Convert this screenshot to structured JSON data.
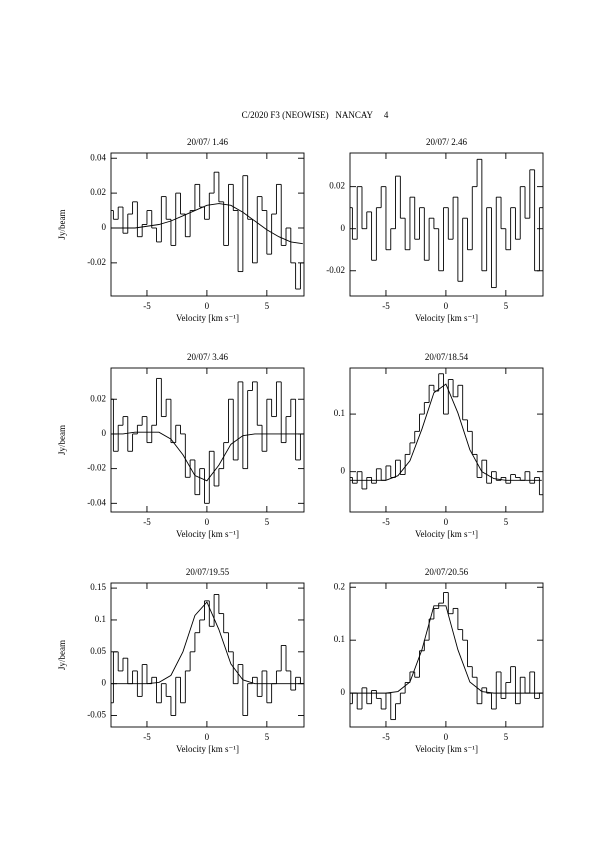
{
  "title": "C/2020 F3 (NEOWISE)   NANCAY     4",
  "chart_data": [
    {
      "type": "line",
      "title": "20/07/ 1.46",
      "x_label": "Velocity [km s⁻¹]",
      "y_label": "Jy/beam",
      "xlim": [
        -8,
        8.1
      ],
      "ylim": [
        -0.039,
        0.043
      ],
      "xticks": [
        -5,
        0,
        5
      ],
      "yticks": [
        -0.02,
        0,
        0.02,
        0.04
      ],
      "series": [
        {
          "style": "steps-mid",
          "color": "#000000",
          "x": [
            -8,
            -7.6,
            -7.2,
            -6.8,
            -6.4,
            -6,
            -5.6,
            -5.2,
            -4.8,
            -4.4,
            -4,
            -3.6,
            -3.2,
            -2.8,
            -2.4,
            -2,
            -1.6,
            -1.2,
            -0.8,
            -0.4,
            0,
            0.4,
            0.8,
            1.2,
            1.6,
            2,
            2.4,
            2.8,
            3.2,
            3.6,
            4,
            4.4,
            4.8,
            5.2,
            5.6,
            6,
            6.4,
            6.8,
            7.2,
            7.6,
            8
          ],
          "values": [
            0.01,
            0.005,
            0.012,
            -0.003,
            0.008,
            0.015,
            -0.005,
            0.002,
            0.01,
            0.0,
            -0.008,
            0.018,
            0.005,
            -0.01,
            0.02,
            0.008,
            -0.005,
            0.01,
            0.025,
            0.012,
            0.005,
            0.02,
            0.032,
            0.015,
            -0.01,
            0.025,
            0.01,
            -0.025,
            0.03,
            0.005,
            -0.02,
            0.018,
            0.01,
            -0.015,
            0.008,
            0.025,
            -0.01,
            0.0,
            -0.02,
            -0.035,
            -0.02
          ]
        },
        {
          "style": "line",
          "color": "#000000",
          "x": [
            -8,
            -7,
            -6,
            -5,
            -4,
            -3,
            -2,
            -1,
            0,
            1,
            2,
            3,
            4,
            5,
            6,
            7,
            8
          ],
          "values": [
            0,
            0,
            0,
            0.001,
            0.002,
            0.004,
            0.007,
            0.01,
            0.013,
            0.014,
            0.013,
            0.009,
            0.004,
            -0.001,
            -0.005,
            -0.008,
            -0.009
          ]
        }
      ]
    },
    {
      "type": "line",
      "title": "20/07/ 2.46",
      "x_label": "Velocity [km s⁻¹]",
      "xlim": [
        -8,
        8.1
      ],
      "ylim": [
        -0.032,
        0.036
      ],
      "xticks": [
        -5,
        0,
        5
      ],
      "yticks": [
        -0.02,
        0,
        0.02
      ],
      "series": [
        {
          "style": "steps-mid",
          "color": "#000000",
          "x": [
            -8,
            -7.6,
            -7.2,
            -6.8,
            -6.4,
            -6,
            -5.6,
            -5.2,
            -4.8,
            -4.4,
            -4,
            -3.6,
            -3.2,
            -2.8,
            -2.4,
            -2,
            -1.6,
            -1.2,
            -0.8,
            -0.4,
            0,
            0.4,
            0.8,
            1.2,
            1.6,
            2,
            2.4,
            2.8,
            3.2,
            3.6,
            4,
            4.4,
            4.8,
            5.2,
            5.6,
            6,
            6.4,
            6.8,
            7.2,
            7.6,
            8
          ],
          "values": [
            0.01,
            -0.005,
            0.02,
            0.0,
            0.008,
            -0.015,
            0.01,
            0.02,
            -0.01,
            0.0,
            0.025,
            0.005,
            -0.01,
            0.015,
            -0.005,
            0.01,
            -0.015,
            0.005,
            0.0,
            -0.02,
            0.01,
            -0.005,
            0.015,
            -0.025,
            0.005,
            -0.01,
            0.02,
            0.033,
            -0.02,
            0.01,
            -0.028,
            0.015,
            0.0,
            -0.01,
            0.01,
            -0.005,
            0.02,
            0.005,
            0.028,
            -0.02,
            0.01
          ]
        }
      ]
    },
    {
      "type": "line",
      "title": "20/07/ 3.46",
      "x_label": "Velocity [km s⁻¹]",
      "y_label": "Jy/beam",
      "xlim": [
        -8,
        8.1
      ],
      "ylim": [
        -0.045,
        0.038
      ],
      "xticks": [
        -5,
        0,
        5
      ],
      "yticks": [
        -0.04,
        -0.02,
        0,
        0.02
      ],
      "series": [
        {
          "style": "steps-mid",
          "color": "#000000",
          "x": [
            -8,
            -7.6,
            -7.2,
            -6.8,
            -6.4,
            -6,
            -5.6,
            -5.2,
            -4.8,
            -4.4,
            -4,
            -3.6,
            -3.2,
            -2.8,
            -2.4,
            -2,
            -1.6,
            -1.2,
            -0.8,
            -0.4,
            0,
            0.4,
            0.8,
            1.2,
            1.6,
            2,
            2.4,
            2.8,
            3.2,
            3.6,
            4,
            4.4,
            4.8,
            5.2,
            5.6,
            6,
            6.4,
            6.8,
            7.2,
            7.6,
            8
          ],
          "values": [
            0.02,
            -0.01,
            0.005,
            0.01,
            -0.01,
            0.0,
            0.005,
            0.01,
            -0.005,
            0.005,
            0.032,
            0.01,
            0.02,
            -0.005,
            0.005,
            0.0,
            -0.025,
            -0.015,
            -0.035,
            -0.02,
            -0.04,
            -0.01,
            -0.03,
            -0.02,
            -0.005,
            0.02,
            -0.015,
            0.03,
            -0.02,
            0.025,
            0.03,
            0.005,
            -0.01,
            0.02,
            0.01,
            0.03,
            -0.005,
            0.01,
            0.02,
            -0.015,
            0.0
          ]
        },
        {
          "style": "line",
          "color": "#000000",
          "x": [
            -8,
            -7,
            -6,
            -5,
            -4,
            -3,
            -2,
            -1,
            0,
            1,
            2,
            3,
            4,
            5,
            6,
            7,
            8
          ],
          "values": [
            0,
            0,
            0.001,
            0.001,
            0.001,
            -0.003,
            -0.012,
            -0.024,
            -0.027,
            -0.018,
            -0.006,
            -0.001,
            0,
            0,
            0,
            0,
            0
          ]
        }
      ]
    },
    {
      "type": "line",
      "title": "20/07/18.54",
      "x_label": "Velocity [km s⁻¹]",
      "xlim": [
        -8,
        8.1
      ],
      "ylim": [
        -0.07,
        0.18
      ],
      "xticks": [
        -5,
        0,
        5
      ],
      "yticks": [
        0,
        0.1
      ],
      "series": [
        {
          "style": "steps-mid",
          "color": "#000000",
          "x": [
            -8,
            -7.6,
            -7.2,
            -6.8,
            -6.4,
            -6,
            -5.6,
            -5.2,
            -4.8,
            -4.4,
            -4,
            -3.6,
            -3.2,
            -2.8,
            -2.4,
            -2,
            -1.6,
            -1.2,
            -0.8,
            -0.4,
            0,
            0.4,
            0.8,
            1.2,
            1.6,
            2,
            2.4,
            2.8,
            3.2,
            3.6,
            4,
            4.4,
            4.8,
            5.2,
            5.6,
            6,
            6.4,
            6.8,
            7.2,
            7.6,
            8
          ],
          "values": [
            -0.01,
            -0.02,
            0.0,
            -0.03,
            -0.01,
            -0.02,
            0.005,
            -0.015,
            0.01,
            -0.01,
            0.02,
            -0.005,
            0.03,
            0.05,
            0.07,
            0.1,
            0.12,
            0.15,
            0.14,
            0.17,
            0.1,
            0.16,
            0.13,
            0.15,
            0.09,
            0.07,
            0.03,
            -0.01,
            0.02,
            -0.02,
            0.0,
            -0.015,
            -0.01,
            -0.02,
            -0.005,
            -0.01,
            -0.015,
            0.0,
            -0.02,
            -0.01,
            -0.04
          ]
        },
        {
          "style": "line",
          "color": "#000000",
          "x": [
            -8,
            -7,
            -6,
            -5,
            -4,
            -3,
            -2,
            -1,
            0,
            1,
            2,
            3,
            4,
            5,
            6,
            7,
            8
          ],
          "values": [
            -0.015,
            -0.015,
            -0.015,
            -0.015,
            -0.007,
            0.019,
            0.074,
            0.137,
            0.152,
            0.102,
            0.038,
            0.0,
            -0.012,
            -0.015,
            -0.015,
            -0.015,
            -0.015
          ]
        }
      ]
    },
    {
      "type": "line",
      "title": "20/07/19.55",
      "x_label": "Velocity [km s⁻¹]",
      "y_label": "Jy/beam",
      "xlim": [
        -8,
        8.1
      ],
      "ylim": [
        -0.068,
        0.158
      ],
      "xticks": [
        -5,
        0,
        5
      ],
      "yticks": [
        -0.05,
        0,
        0.05,
        0.1,
        0.15
      ],
      "series": [
        {
          "style": "steps-mid",
          "color": "#000000",
          "x": [
            -8,
            -7.6,
            -7.2,
            -6.8,
            -6.4,
            -6,
            -5.6,
            -5.2,
            -4.8,
            -4.4,
            -4,
            -3.6,
            -3.2,
            -2.8,
            -2.4,
            -2,
            -1.6,
            -1.2,
            -0.8,
            -0.4,
            0,
            0.4,
            0.8,
            1.2,
            1.6,
            2,
            2.4,
            2.8,
            3.2,
            3.6,
            4,
            4.4,
            4.8,
            5.2,
            5.6,
            6,
            6.4,
            6.8,
            7.2,
            7.6,
            8
          ],
          "values": [
            -0.03,
            0.05,
            0.02,
            0.04,
            0.0,
            0.02,
            -0.02,
            0.03,
            0.0,
            0.01,
            -0.03,
            0.0,
            -0.02,
            -0.05,
            0.01,
            -0.03,
            0.02,
            0.05,
            0.08,
            0.1,
            0.13,
            0.09,
            0.14,
            0.11,
            0.08,
            0.05,
            0.0,
            0.03,
            -0.05,
            0.0,
            0.01,
            -0.02,
            0.02,
            -0.03,
            0.0,
            0.02,
            0.06,
            0.02,
            -0.01,
            0.01,
            0.0
          ]
        },
        {
          "style": "line",
          "color": "#000000",
          "x": [
            -8,
            -7,
            -6,
            -5,
            -4,
            -3,
            -2,
            -1,
            0,
            1,
            2,
            3,
            4,
            5,
            6,
            7,
            8
          ],
          "values": [
            0,
            0,
            0,
            0,
            0.002,
            0.013,
            0.05,
            0.107,
            0.128,
            0.085,
            0.031,
            0.006,
            0,
            0,
            0,
            0,
            0
          ]
        }
      ]
    },
    {
      "type": "line",
      "title": "20/07/20.56",
      "x_label": "Velocity [km s⁻¹]",
      "xlim": [
        -8,
        8.1
      ],
      "ylim": [
        -0.064,
        0.208
      ],
      "xticks": [
        -5,
        0,
        5
      ],
      "yticks": [
        0,
        0.1,
        0.2
      ],
      "series": [
        {
          "style": "steps-mid",
          "color": "#000000",
          "x": [
            -8,
            -7.6,
            -7.2,
            -6.8,
            -6.4,
            -6,
            -5.6,
            -5.2,
            -4.8,
            -4.4,
            -4,
            -3.6,
            -3.2,
            -2.8,
            -2.4,
            -2,
            -1.6,
            -1.2,
            -0.8,
            -0.4,
            0,
            0.4,
            0.8,
            1.2,
            1.6,
            2,
            2.4,
            2.8,
            3.2,
            3.6,
            4,
            4.4,
            4.8,
            5.2,
            5.6,
            6,
            6.4,
            6.8,
            7.2,
            7.6,
            8
          ],
          "values": [
            -0.02,
            0.0,
            -0.03,
            0.01,
            -0.02,
            0.005,
            -0.01,
            -0.03,
            0.0,
            -0.05,
            -0.02,
            0.0,
            0.02,
            0.04,
            0.03,
            0.08,
            0.1,
            0.14,
            0.16,
            0.17,
            0.19,
            0.15,
            0.16,
            0.12,
            0.1,
            0.05,
            0.03,
            -0.02,
            0.01,
            0.0,
            -0.03,
            0.04,
            -0.01,
            0.02,
            0.05,
            -0.02,
            0.03,
            0.0,
            0.04,
            -0.01,
            0.0
          ]
        },
        {
          "style": "line",
          "color": "#000000",
          "x": [
            -8,
            -7,
            -6,
            -5,
            -4,
            -3,
            -2,
            -1,
            0,
            1,
            2,
            3,
            4,
            5,
            6,
            7,
            8
          ],
          "values": [
            0,
            0,
            0,
            0,
            0.003,
            0.021,
            0.082,
            0.165,
            0.165,
            0.082,
            0.021,
            0.003,
            0,
            0,
            0,
            0,
            0
          ]
        }
      ]
    }
  ]
}
